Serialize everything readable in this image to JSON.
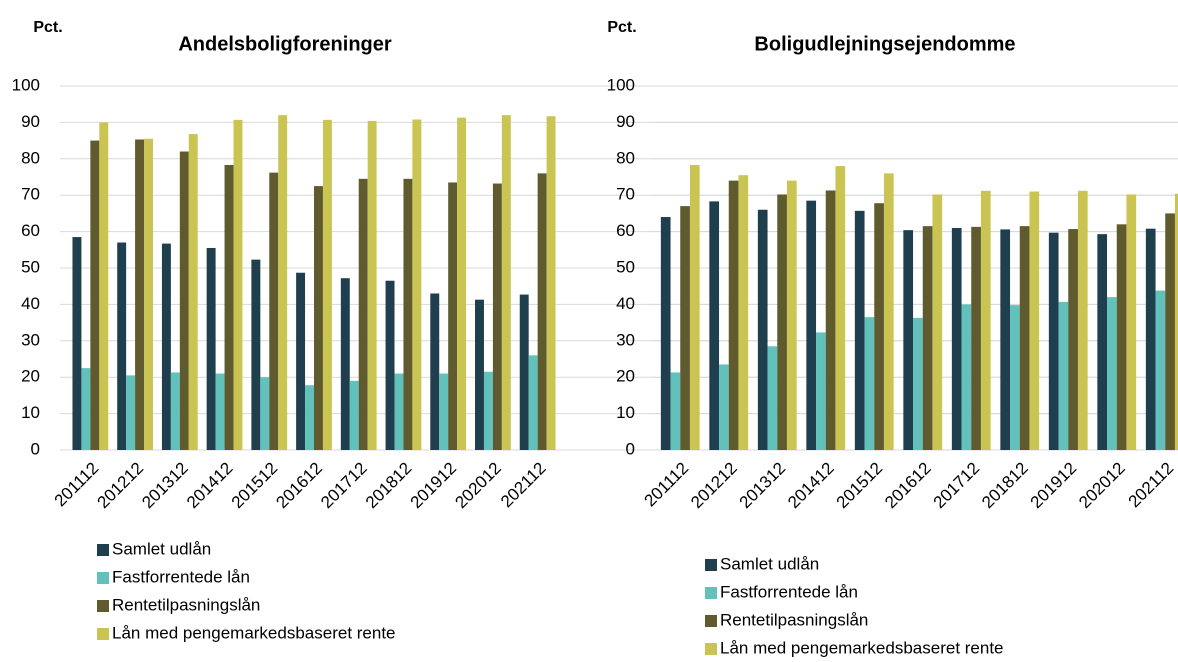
{
  "chart_data": [
    {
      "type": "bar",
      "y_axis_label": "Pct.",
      "title": "Andelsboligforeninger",
      "categories": [
        "201112",
        "201212",
        "201312",
        "201412",
        "201512",
        "201612",
        "201712",
        "201812",
        "201912",
        "202012",
        "202112"
      ],
      "series": [
        {
          "name": "Samlet udlån",
          "color": "#1f3f4e",
          "values": [
            58.5,
            57,
            56.7,
            55.5,
            52.3,
            48.7,
            47.2,
            46.5,
            43,
            41.3,
            42.7
          ]
        },
        {
          "name": "Fastforrentede lån",
          "color": "#62c1bb",
          "values": [
            22.5,
            20.5,
            21.3,
            21,
            20,
            17.8,
            19,
            21,
            21,
            21.5,
            26
          ]
        },
        {
          "name": "Rentetilpasningslån",
          "color": "#5f5b2f",
          "values": [
            85,
            85.3,
            82,
            78.3,
            76.2,
            72.5,
            74.5,
            74.5,
            73.5,
            73.2,
            76
          ]
        },
        {
          "name": "Lån med pengemarkedsbaseret rente",
          "color": "#cac553",
          "values": [
            90,
            85.5,
            86.8,
            90.7,
            92,
            90.7,
            90.4,
            90.8,
            91.3,
            92,
            91.7
          ]
        }
      ],
      "ylim": [
        0,
        100
      ],
      "yticks": [
        0,
        10,
        20,
        30,
        40,
        50,
        60,
        70,
        80,
        90,
        100
      ],
      "grid": true
    },
    {
      "type": "bar",
      "y_axis_label": "Pct.",
      "title": "Boligudlejningsejendomme",
      "categories": [
        "201112",
        "201212",
        "201312",
        "201412",
        "201512",
        "201612",
        "201712",
        "201812",
        "201912",
        "202012",
        "202112"
      ],
      "series": [
        {
          "name": "Samlet udlån",
          "color": "#1f3f4e",
          "values": [
            64,
            68.3,
            66,
            68.5,
            65.7,
            60.4,
            61,
            60.6,
            59.7,
            59.3,
            60.8
          ]
        },
        {
          "name": "Fastforrentede lån",
          "color": "#62c1bb",
          "values": [
            21.3,
            23.5,
            28.5,
            32.3,
            36.5,
            36.3,
            40,
            39.8,
            40.7,
            42,
            43.8
          ]
        },
        {
          "name": "Rentetilpasningslån",
          "color": "#5f5b2f",
          "values": [
            67,
            74,
            70.2,
            71.3,
            67.8,
            61.5,
            61.3,
            61.5,
            60.7,
            62,
            65
          ]
        },
        {
          "name": "Lån med pengemarkedsbaseret rente",
          "color": "#cac553",
          "values": [
            78.3,
            75.5,
            74,
            78,
            76,
            70.2,
            71.2,
            71,
            71.2,
            70.2,
            70.4
          ]
        }
      ],
      "ylim": [
        0,
        100
      ],
      "yticks": [
        0,
        10,
        20,
        30,
        40,
        50,
        60,
        70,
        80,
        90,
        100
      ],
      "grid": true
    }
  ]
}
